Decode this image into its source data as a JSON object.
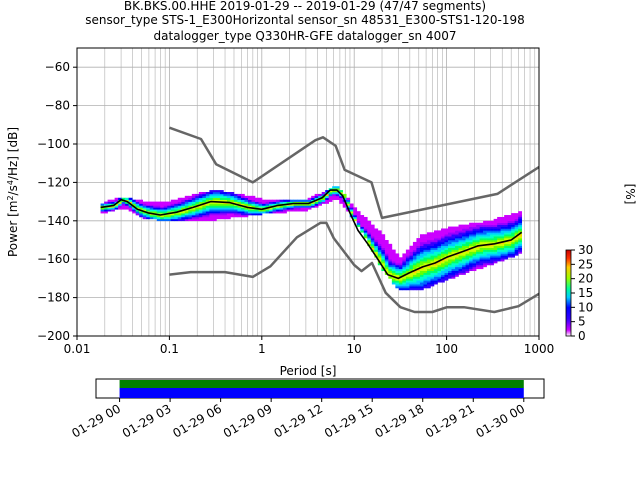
{
  "title": {
    "line1": "BK.BKS.00.HHE   2019-01-29 -- 2019-01-29  (47/47 segments)",
    "line2": "sensor_type STS-1_E300Horizontal sensor_sn 48531_E300-STS1-120-198",
    "line3": "datalogger_type Q330HR-GFE datalogger_sn 4007"
  },
  "colors": {
    "noise_model": "#666666",
    "mode_line": "#000000",
    "coverage_top": "#008000",
    "coverage_bottom": "#0000ff",
    "colormap": [
      "#ffffff",
      "#cc00ff",
      "#9900ff",
      "#3300ff",
      "#0000ff",
      "#0066ff",
      "#00ccff",
      "#00ffcc",
      "#00ff66",
      "#66ff00",
      "#ccff00",
      "#ffcc00",
      "#ff6600",
      "#ff0000",
      "#cc0000"
    ]
  },
  "chart_data": [
    {
      "type": "heatmap",
      "xlabel": "Period [s]",
      "ylabel": "Power [m²/s⁴/Hz] [dB]",
      "x_scale": "log",
      "xlim": [
        0.01,
        1000
      ],
      "ylim": [
        -200,
        -50
      ],
      "x_ticks": [
        0.01,
        0.1,
        1,
        10,
        100,
        1000
      ],
      "x_tick_labels": [
        "0.01",
        "0.1",
        "1",
        "10",
        "100",
        "1000"
      ],
      "y_ticks": [
        -200,
        -180,
        -160,
        -140,
        -120,
        -100,
        -80,
        -60
      ],
      "y_tick_labels": [
        "−200",
        "−180",
        "−160",
        "−140",
        "−120",
        "−100",
        "−80",
        "−60"
      ],
      "grid": true,
      "colorbar": {
        "label": "[%]",
        "range": [
          0,
          30
        ],
        "ticks": [
          0,
          5,
          10,
          15,
          20,
          25,
          30
        ],
        "tick_labels": [
          "0",
          "5",
          "10",
          "15",
          "20",
          "25",
          "30"
        ]
      },
      "series": [
        {
          "name": "",
          "kind": "noise_model_high",
          "x": [
            0.1,
            0.22,
            0.32,
            0.8,
            3.8,
            4.6,
            6.3,
            7.9,
            15.4,
            20,
            354.8,
            1000
          ],
          "y": [
            -91.5,
            -97.4,
            -110.5,
            -120,
            -98,
            -96.5,
            -101,
            -113.5,
            -120,
            -138.5,
            -126,
            -112
          ]
        },
        {
          "name": "",
          "kind": "noise_model_low",
          "x": [
            0.1,
            0.17,
            0.4,
            0.8,
            1.24,
            2.4,
            4.3,
            5,
            6,
            10,
            12,
            15.6,
            21.9,
            31.6,
            45,
            70,
            101,
            154,
            328,
            600,
            1000
          ],
          "y": [
            -168,
            -166.7,
            -166.7,
            -169.2,
            -163.7,
            -148.6,
            -141.1,
            -141.1,
            -149,
            -163,
            -166.2,
            -162,
            -177.5,
            -185,
            -187.5,
            -187.5,
            -185,
            -185,
            -187.5,
            -184.5,
            -178
          ]
        },
        {
          "name": "",
          "kind": "mode",
          "x": [
            0.018,
            0.025,
            0.03,
            0.035,
            0.045,
            0.06,
            0.08,
            0.12,
            0.18,
            0.28,
            0.45,
            0.7,
            1,
            1.5,
            2.2,
            3.2,
            4.5,
            5.5,
            6.5,
            7.5,
            9,
            11,
            14,
            18,
            23,
            30,
            40,
            55,
            75,
            100,
            150,
            220,
            330,
            500,
            650
          ],
          "y": [
            -133,
            -132,
            -129,
            -130,
            -134,
            -136,
            -137,
            -135.5,
            -133,
            -130,
            -130.5,
            -133,
            -134,
            -132,
            -131,
            -131,
            -128,
            -124,
            -124,
            -127,
            -136,
            -145,
            -152,
            -160,
            -168,
            -170,
            -167,
            -164,
            -162,
            -159,
            -156,
            -153,
            -152,
            -150,
            -146
          ]
        }
      ],
      "heatmap_band": {
        "x": [
          0.018,
          0.03,
          0.05,
          0.1,
          0.3,
          1,
          3,
          6.3,
          10,
          20,
          30,
          50,
          100,
          300,
          650
        ],
        "y_low": [
          -136,
          -133,
          -138,
          -140,
          -139,
          -136,
          -134,
          -128,
          -140,
          -166,
          -176,
          -176,
          -170,
          -162,
          -156
        ],
        "y_high": [
          -131,
          -128,
          -130,
          -130,
          -124,
          -129,
          -129,
          -122,
          -134,
          -148,
          -160,
          -148,
          -144,
          -140,
          -135
        ]
      }
    },
    {
      "type": "bar",
      "role": "data_coverage",
      "x_tick_labels": [
        "01-29 00",
        "01-29 03",
        "01-29 06",
        "01-29 09",
        "01-29 12",
        "01-29 15",
        "01-29 18",
        "01-29 21",
        "01-30 00"
      ],
      "xlim_hours": [
        -1.4,
        25.2
      ],
      "covered_hours": [
        0,
        24
      ]
    }
  ]
}
